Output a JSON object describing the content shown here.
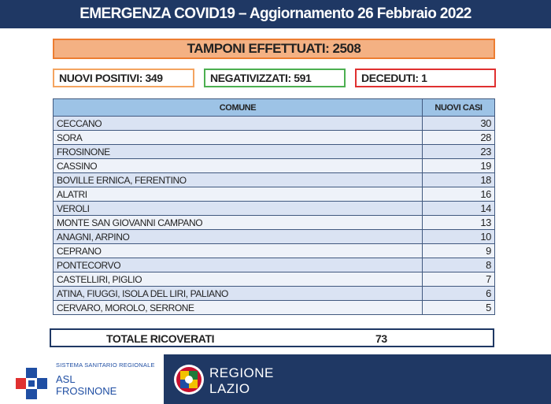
{
  "header": {
    "title": "EMERGENZA COVID19 – Aggiornamento 26 Febbraio 2022"
  },
  "tamponi": "TAMPONI EFFETTUATI: 2508",
  "stats": {
    "nuovi_positivi": "NUOVI POSITIVI: 349",
    "negativizzati": "NEGATIVIZZATI: 591",
    "deceduti": "DECEDUTI: 1"
  },
  "table": {
    "headers": [
      "COMUNE",
      "NUOVI CASI"
    ],
    "rows": [
      [
        "CECCANO",
        "30"
      ],
      [
        "SORA",
        "28"
      ],
      [
        "FROSINONE",
        "23"
      ],
      [
        "CASSINO",
        "19"
      ],
      [
        "BOVILLE ERNICA, FERENTINO",
        "18"
      ],
      [
        "ALATRI",
        "16"
      ],
      [
        "VEROLI",
        "14"
      ],
      [
        "MONTE SAN GIOVANNI CAMPANO",
        "13"
      ],
      [
        "ANAGNI, ARPINO",
        "10"
      ],
      [
        "CEPRANO",
        "9"
      ],
      [
        "PONTECORVO",
        "8"
      ],
      [
        "CASTELLIRI, PIGLIO",
        "7"
      ],
      [
        "ATINA, FIUGGI, ISOLA DEL LIRI, PALIANO",
        "6"
      ],
      [
        "CERVARO, MOROLO, SERRONE",
        "5"
      ]
    ]
  },
  "totale": {
    "label": "TOTALE RICOVERATI",
    "value": "73"
  },
  "footer": {
    "asl_subtitle": "SISTEMA SANITARIO REGIONALE",
    "asl_name1": "ASL",
    "asl_name2": "FROSINONE",
    "region_line1": "REGIONE",
    "region_line2": "LAZIO"
  },
  "colors": {
    "banner": "#1f3864",
    "tamponi_fill": "#f4b183",
    "positivi_border": "#f4a460",
    "negativizzati_border": "#4caf50",
    "deceduti_border": "#e03030",
    "table_header": "#9dc3e6"
  }
}
